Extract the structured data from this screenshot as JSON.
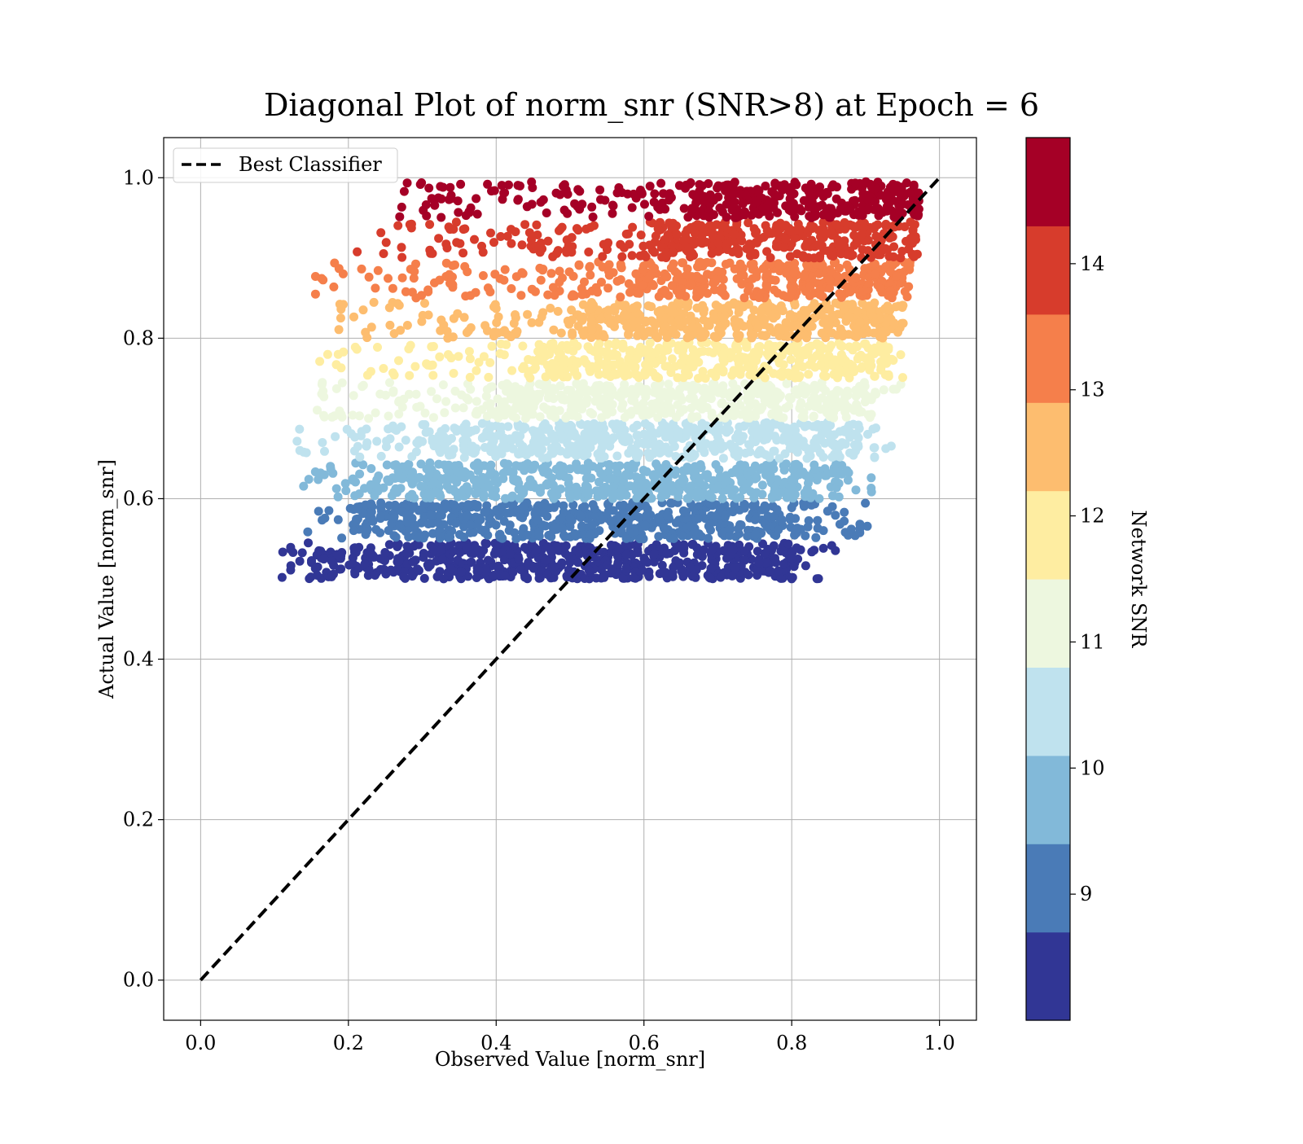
{
  "chart_data": {
    "type": "scatter",
    "title": "Diagonal Plot of norm_snr (SNR>8) at Epoch = 6",
    "xlabel": "Observed Value [norm_snr]",
    "ylabel": "Actual Value [norm_snr]",
    "xlim": [
      -0.05,
      1.05
    ],
    "ylim": [
      -0.05,
      1.05
    ],
    "xticks": [
      0.0,
      0.2,
      0.4,
      0.6,
      0.8,
      1.0
    ],
    "yticks": [
      0.0,
      0.2,
      0.4,
      0.6,
      0.8,
      1.0
    ],
    "xtick_labels": [
      "0.0",
      "0.2",
      "0.4",
      "0.6",
      "0.8",
      "1.0"
    ],
    "ytick_labels": [
      "0.0",
      "0.2",
      "0.4",
      "0.6",
      "0.8",
      "1.0"
    ],
    "grid": true,
    "legend": {
      "position": "top-left",
      "entries": [
        "Best Classifier"
      ]
    },
    "reference_line": {
      "name": "Best Classifier",
      "x": [
        0.0,
        1.0
      ],
      "y": [
        0.0,
        1.0
      ],
      "style": "dashed",
      "color": "#000000"
    },
    "colorbar": {
      "label": "Network SNR",
      "range": [
        8.0,
        15.0
      ],
      "ticks": [
        9,
        10,
        11,
        12,
        13,
        14
      ],
      "tick_labels": [
        "9",
        "10",
        "11",
        "12",
        "13",
        "14"
      ],
      "colors": [
        "#313695",
        "#4a7bb7",
        "#82b9d9",
        "#bfe2ee",
        "#edf7df",
        "#feeda1",
        "#fdbd6f",
        "#f57f4b",
        "#d73c2c",
        "#a50026"
      ]
    },
    "bands": [
      {
        "snr_bin": [
          8.0,
          8.7
        ],
        "y_range": [
          0.5,
          0.545
        ],
        "x_core": [
          0.15,
          0.8
        ],
        "x_spread": [
          0.105,
          0.86
        ],
        "color": "#313695"
      },
      {
        "snr_bin": [
          8.7,
          9.4
        ],
        "y_range": [
          0.55,
          0.595
        ],
        "x_core": [
          0.22,
          0.82
        ],
        "x_spread": [
          0.14,
          0.91
        ],
        "color": "#4a7bb7"
      },
      {
        "snr_bin": [
          9.4,
          10.1
        ],
        "y_range": [
          0.6,
          0.645
        ],
        "x_core": [
          0.26,
          0.86
        ],
        "x_spread": [
          0.12,
          0.92
        ],
        "color": "#82b9d9"
      },
      {
        "snr_bin": [
          10.1,
          10.8
        ],
        "y_range": [
          0.65,
          0.695
        ],
        "x_core": [
          0.32,
          0.89
        ],
        "x_spread": [
          0.13,
          0.94
        ],
        "color": "#bfe2ee"
      },
      {
        "snr_bin": [
          10.8,
          11.5
        ],
        "y_range": [
          0.7,
          0.745
        ],
        "x_core": [
          0.4,
          0.9
        ],
        "x_spread": [
          0.145,
          0.95
        ],
        "color": "#edf7df"
      },
      {
        "snr_bin": [
          11.5,
          12.2
        ],
        "y_range": [
          0.75,
          0.795
        ],
        "x_core": [
          0.48,
          0.93
        ],
        "x_spread": [
          0.16,
          0.96
        ],
        "color": "#feeda1"
      },
      {
        "snr_bin": [
          12.2,
          12.9
        ],
        "y_range": [
          0.8,
          0.845
        ],
        "x_core": [
          0.53,
          0.95
        ],
        "x_spread": [
          0.18,
          0.96
        ],
        "color": "#fdbd6f"
      },
      {
        "snr_bin": [
          12.9,
          13.6
        ],
        "y_range": [
          0.85,
          0.895
        ],
        "x_core": [
          0.6,
          0.96
        ],
        "x_spread": [
          0.155,
          0.965
        ],
        "color": "#f57f4b"
      },
      {
        "snr_bin": [
          13.6,
          14.3
        ],
        "y_range": [
          0.9,
          0.945
        ],
        "x_core": [
          0.63,
          0.97
        ],
        "x_spread": [
          0.21,
          0.97
        ],
        "color": "#d73c2c"
      },
      {
        "snr_bin": [
          14.3,
          15.0
        ],
        "y_range": [
          0.95,
          0.995
        ],
        "x_core": [
          0.67,
          0.975
        ],
        "x_spread": [
          0.255,
          0.975
        ],
        "color": "#a50026"
      }
    ]
  }
}
